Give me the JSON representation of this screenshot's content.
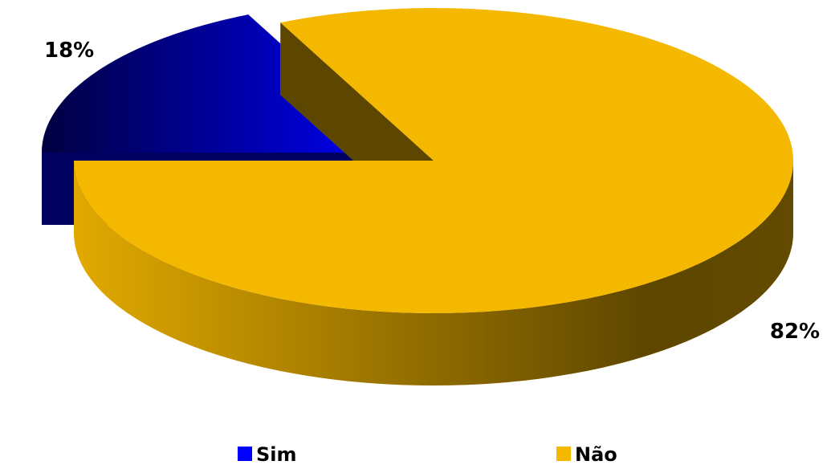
{
  "chart_data": {
    "type": "pie",
    "categories": [
      "Sim",
      "Não"
    ],
    "values": [
      18,
      82
    ],
    "value_labels": [
      "18%",
      "82%"
    ],
    "colors": [
      "#0000ff",
      "#f5b800"
    ],
    "legend": "bottom"
  }
}
